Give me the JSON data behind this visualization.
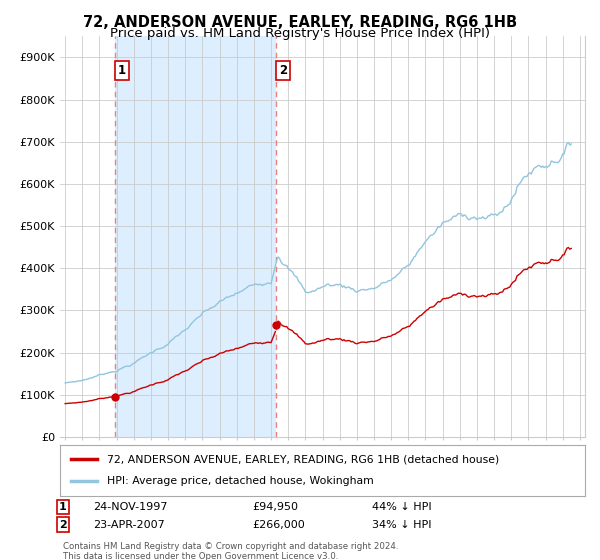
{
  "title": "72, ANDERSON AVENUE, EARLEY, READING, RG6 1HB",
  "subtitle": "Price paid vs. HM Land Registry's House Price Index (HPI)",
  "ylabel_ticks": [
    "£0",
    "£100K",
    "£200K",
    "£300K",
    "£400K",
    "£500K",
    "£600K",
    "£700K",
    "£800K",
    "£900K"
  ],
  "ytick_values": [
    0,
    100000,
    200000,
    300000,
    400000,
    500000,
    600000,
    700000,
    800000,
    900000
  ],
  "ylim": [
    0,
    950000
  ],
  "xlim_start": 1994.7,
  "xlim_end": 2025.3,
  "sale1_x": 1997.9,
  "sale1_y": 94950,
  "sale2_x": 2007.3,
  "sale2_y": 266000,
  "hpi_color": "#92c5de",
  "price_color": "#cc0000",
  "dashed_color": "#e88080",
  "shade_color": "#ddeeff",
  "legend_label_red": "72, ANDERSON AVENUE, EARLEY, READING, RG6 1HB (detached house)",
  "legend_label_blue": "HPI: Average price, detached house, Wokingham",
  "bg_color": "#ffffff",
  "grid_color": "#cccccc",
  "title_fontsize": 10.5,
  "subtitle_fontsize": 9.5,
  "tick_fontsize": 8
}
